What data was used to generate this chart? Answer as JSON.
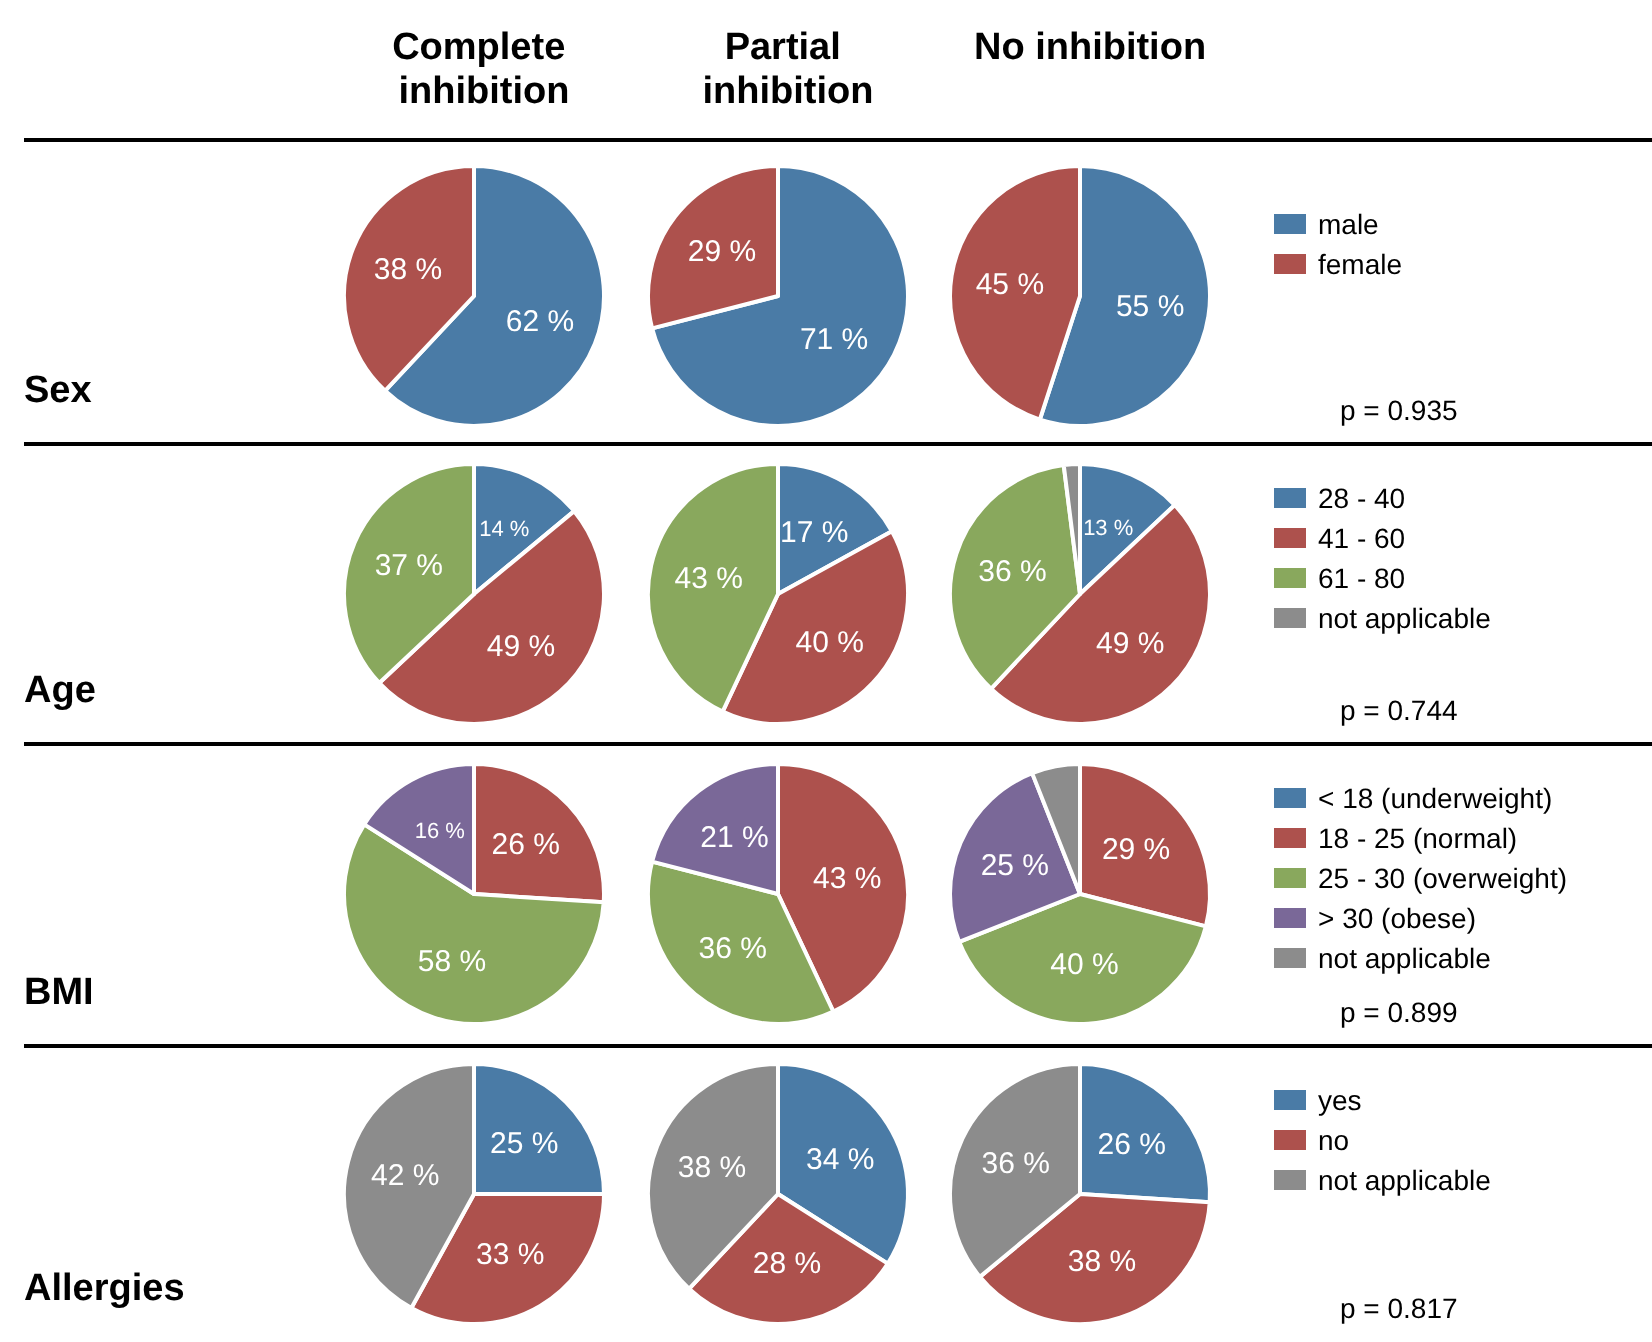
{
  "chart_data": [
    {
      "type": "pie",
      "title": "Complete inhibition",
      "ylabel": "Sex",
      "categories": [
        null,
        null
      ],
      "values": [
        62,
        38
      ],
      "colors": [
        "#4a7ba6",
        "#ad514d"
      ],
      "value_labels": [
        "62 %",
        "38 %"
      ]
    },
    {
      "type": "pie",
      "title": "Partial inhibition",
      "categories": [
        null,
        null
      ],
      "values": [
        71,
        29
      ],
      "colors": [
        "#4a7ba6",
        "#ad514d"
      ],
      "value_labels": [
        "71 %",
        "29 %"
      ]
    },
    {
      "type": "pie",
      "title": "No inhibition",
      "categories": [
        "male",
        "female"
      ],
      "values": [
        55,
        45
      ],
      "colors": [
        "#4a7ba6",
        "#ad514d"
      ],
      "value_labels": [
        "55 %",
        "45 %"
      ],
      "legend": "right",
      "annotations": [
        "p = 0.935"
      ]
    },
    {
      "type": "pie",
      "ylabel": "Age",
      "categories": [
        null,
        null,
        null,
        null
      ],
      "values": [
        14,
        49,
        37,
        0
      ],
      "colors": [
        "#4a7ba6",
        "#ad514d",
        "#89a85d",
        "#8c8c8c"
      ],
      "value_labels": [
        "14 %",
        "49 %",
        "37 %",
        null
      ]
    },
    {
      "type": "pie",
      "categories": [
        null,
        null,
        null,
        null
      ],
      "values": [
        17,
        40,
        43,
        0
      ],
      "colors": [
        "#4a7ba6",
        "#ad514d",
        "#89a85d",
        "#8c8c8c"
      ],
      "value_labels": [
        "17 %",
        "40 %",
        "43 %",
        null
      ]
    },
    {
      "type": "pie",
      "categories": [
        "28 - 40",
        "41 - 60",
        "61 - 80",
        "not applicable"
      ],
      "values": [
        13,
        49,
        36,
        2
      ],
      "colors": [
        "#4a7ba6",
        "#ad514d",
        "#89a85d",
        "#8c8c8c"
      ],
      "value_labels": [
        "13 %",
        "49 %",
        "36 %",
        null
      ],
      "legend": "right",
      "annotations": [
        "p = 0.744"
      ]
    },
    {
      "type": "pie",
      "ylabel": "BMI",
      "categories": [
        null,
        null,
        null,
        null,
        null
      ],
      "values": [
        0,
        26,
        58,
        16,
        0
      ],
      "colors": [
        "#4a7ba6",
        "#ad514d",
        "#89a85d",
        "#7a6898",
        "#8c8c8c"
      ],
      "value_labels": [
        null,
        "26 %",
        "58 %",
        "16 %",
        null
      ]
    },
    {
      "type": "pie",
      "categories": [
        null,
        null,
        null,
        null,
        null
      ],
      "values": [
        0,
        43,
        36,
        21,
        0
      ],
      "colors": [
        "#4a7ba6",
        "#ad514d",
        "#89a85d",
        "#7a6898",
        "#8c8c8c"
      ],
      "value_labels": [
        null,
        "43 %",
        "36 %",
        "21 %",
        null
      ]
    },
    {
      "type": "pie",
      "categories": [
        "< 18 (underweight)",
        "18 - 25 (normal)",
        "25 - 30 (overweight)",
        "> 30 (obese)",
        "not applicable"
      ],
      "values": [
        0,
        29,
        40,
        25,
        6
      ],
      "colors": [
        "#4a7ba6",
        "#ad514d",
        "#89a85d",
        "#7a6898",
        "#8c8c8c"
      ],
      "value_labels": [
        null,
        "29 %",
        "40 %",
        "25 %",
        null
      ],
      "legend": "right",
      "annotations": [
        "p = 0.899"
      ]
    },
    {
      "type": "pie",
      "ylabel": "Allergies",
      "categories": [
        null,
        null,
        null
      ],
      "values": [
        25,
        33,
        42
      ],
      "colors": [
        "#4a7ba6",
        "#ad514d",
        "#8c8c8c"
      ],
      "value_labels": [
        "25 %",
        "33 %",
        "42 %"
      ]
    },
    {
      "type": "pie",
      "categories": [
        null,
        null,
        null
      ],
      "values": [
        34,
        28,
        38
      ],
      "colors": [
        "#4a7ba6",
        "#ad514d",
        "#8c8c8c"
      ],
      "value_labels": [
        "34 %",
        "28 %",
        "38 %"
      ]
    },
    {
      "type": "pie",
      "categories": [
        "yes",
        "no",
        "not applicable"
      ],
      "values": [
        26,
        38,
        36
      ],
      "colors": [
        "#4a7ba6",
        "#ad514d",
        "#8c8c8c"
      ],
      "value_labels": [
        "26 %",
        "38 %",
        "36 %"
      ],
      "legend": "right",
      "annotations": [
        "p = 0.817"
      ]
    }
  ]
}
